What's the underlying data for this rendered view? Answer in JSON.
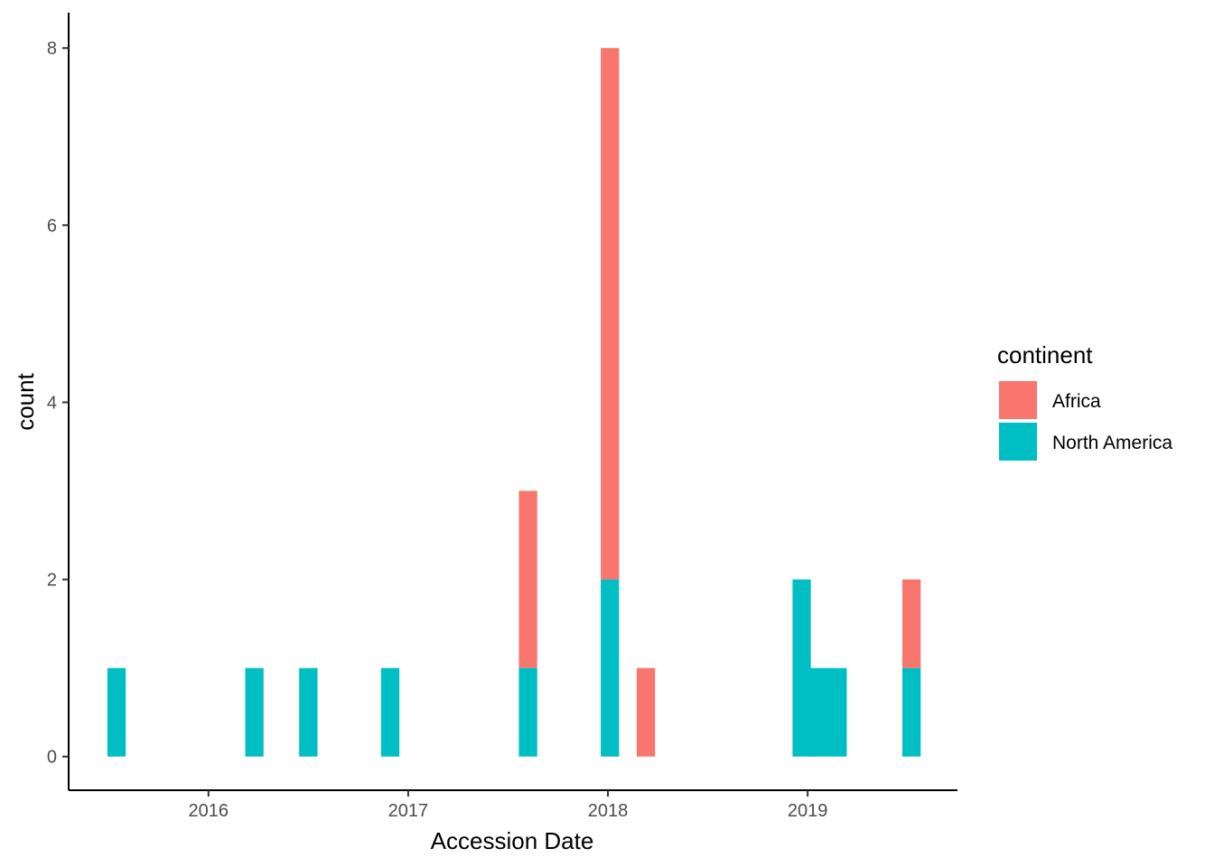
{
  "chart_data": {
    "type": "bar",
    "stacked": true,
    "xlabel": "Accession Date",
    "ylabel": "count",
    "x_ticks": [
      2016,
      2017,
      2018,
      2019
    ],
    "y_ticks": [
      0,
      2,
      4,
      6,
      8
    ],
    "xlim": [
      2015.3,
      2019.75
    ],
    "ylim": [
      -0.38,
      8.4
    ],
    "bin_width": 0.0917,
    "bins": [
      {
        "x": 2015.54,
        "africa": 0,
        "north_america": 1
      },
      {
        "x": 2016.23,
        "africa": 0,
        "north_america": 1
      },
      {
        "x": 2016.5,
        "africa": 0,
        "north_america": 1
      },
      {
        "x": 2016.91,
        "africa": 0,
        "north_america": 1
      },
      {
        "x": 2017.6,
        "africa": 2,
        "north_america": 1
      },
      {
        "x": 2018.01,
        "africa": 6,
        "north_america": 2
      },
      {
        "x": 2018.19,
        "africa": 1,
        "north_america": 0
      },
      {
        "x": 2018.97,
        "africa": 0,
        "north_america": 2
      },
      {
        "x": 2019.06,
        "africa": 0,
        "north_america": 1
      },
      {
        "x": 2019.15,
        "africa": 0,
        "north_america": 1
      },
      {
        "x": 2019.52,
        "africa": 1,
        "north_america": 1
      }
    ],
    "legend": {
      "title": "continent",
      "position": "right",
      "entries": [
        {
          "label": "Africa",
          "key": "africa",
          "color": "#F8766D"
        },
        {
          "label": "North America",
          "key": "north_america",
          "color": "#00BFC4"
        }
      ]
    }
  }
}
